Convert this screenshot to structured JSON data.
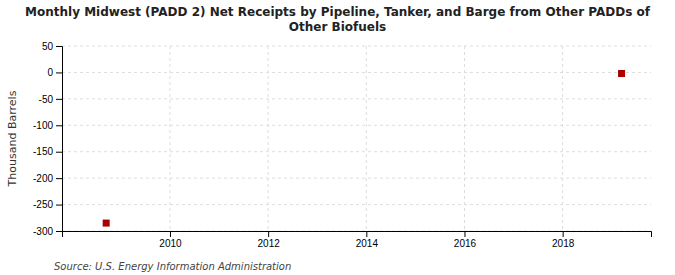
{
  "chart_data": {
    "type": "scatter",
    "title": "Monthly Midwest (PADD 2) Net Receipts by Pipeline, Tanker, and Barge from Other PADDs of\nOther Biofuels",
    "ylabel": "Thousand Barrels",
    "source": "Source: U.S. Energy Information Administration",
    "x": [
      2008.7,
      2019.2
    ],
    "values": [
      -285,
      -2
    ],
    "color": "#aa0000",
    "marker": "square",
    "xlim": [
      2007.8,
      2019.8
    ],
    "xticks": [
      2010,
      2012,
      2014,
      2016,
      2018
    ],
    "ylim": [
      -300,
      50
    ],
    "yticks": [
      50,
      0,
      -50,
      -100,
      -150,
      -200,
      -250,
      -300
    ],
    "grid": true
  }
}
